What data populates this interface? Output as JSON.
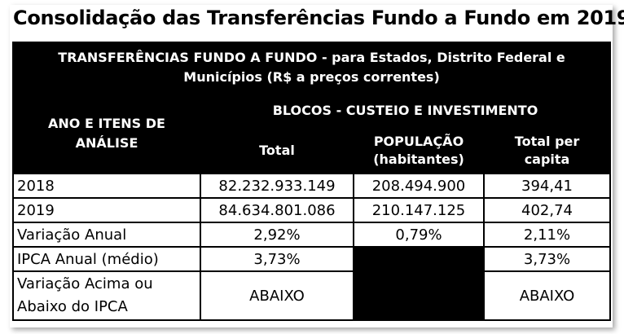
{
  "title": "Consolidação das Transferências Fundo a Fundo em 2019",
  "header": {
    "main_line1": "TRANSFERÊNCIAS FUNDO A FUNDO - para Estados, Distrito Federal e",
    "main_line2": "Municípios (R$ a preços correntes)",
    "left_line1": "ANO E ITENS DE",
    "left_line2": "ANÁLISE",
    "blocos": "BLOCOS - CUSTEIO E INVESTIMENTO",
    "col_total": "Total",
    "col_pop_line1": "POPULAÇÃO",
    "col_pop_line2": "(habitantes)",
    "col_percap_line1": "Total per",
    "col_percap_line2": "capita"
  },
  "rows": {
    "r2018": {
      "label": "2018",
      "total": "82.232.933.149",
      "populacao": "208.494.900",
      "per_capita": "394,41"
    },
    "r2019": {
      "label": "2019",
      "total": "84.634.801.086",
      "populacao": "210.147.125",
      "per_capita": "402,74"
    },
    "variacao": {
      "label": "Variação Anual",
      "total": "2,92%",
      "populacao": "0,79%",
      "per_capita": "2,11%"
    },
    "ipca": {
      "label": "IPCA Anual (médio)",
      "total": "3,73%",
      "per_capita": "3,73%"
    },
    "acima": {
      "label_line1": "Variação Acima ou",
      "label_line2": "Abaixo do IPCA",
      "total": "ABAIXO",
      "per_capita": "ABAIXO"
    }
  }
}
